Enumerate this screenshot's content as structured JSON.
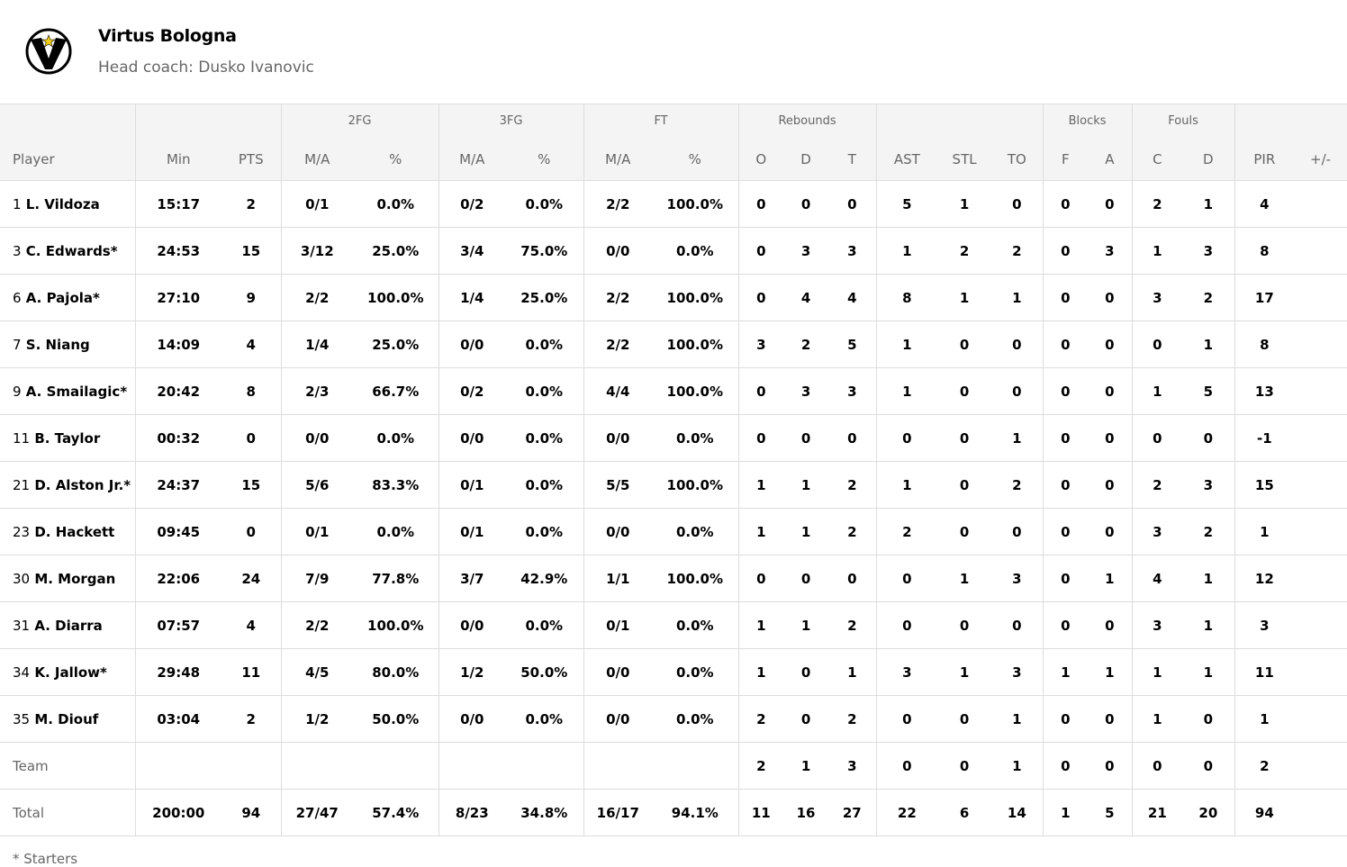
{
  "team": {
    "name": "Virtus Bologna",
    "coach": "Head coach: Dusko Ivanovic",
    "logo": "virtus-bologna-logo"
  },
  "groups": {
    "fg2": "2FG",
    "fg3": "3FG",
    "ft": "FT",
    "reb": "Rebounds",
    "blk": "Blocks",
    "fouls": "Fouls"
  },
  "columns": [
    "Player",
    "Min",
    "PTS",
    "M/A",
    "%",
    "M/A",
    "%",
    "M/A",
    "%",
    "O",
    "D",
    "T",
    "AST",
    "STL",
    "TO",
    "F",
    "A",
    "C",
    "D",
    "PIR",
    "+/-"
  ],
  "rows": [
    {
      "num": "1",
      "name": "L. Vildoza",
      "stats": [
        "15:17",
        "2",
        "0/1",
        "0.0%",
        "0/2",
        "0.0%",
        "2/2",
        "100.0%",
        "0",
        "0",
        "0",
        "5",
        "1",
        "0",
        "0",
        "0",
        "2",
        "1",
        "4",
        ""
      ]
    },
    {
      "num": "3",
      "name": "C. Edwards*",
      "stats": [
        "24:53",
        "15",
        "3/12",
        "25.0%",
        "3/4",
        "75.0%",
        "0/0",
        "0.0%",
        "0",
        "3",
        "3",
        "1",
        "2",
        "2",
        "0",
        "3",
        "1",
        "3",
        "8",
        ""
      ]
    },
    {
      "num": "6",
      "name": "A. Pajola*",
      "stats": [
        "27:10",
        "9",
        "2/2",
        "100.0%",
        "1/4",
        "25.0%",
        "2/2",
        "100.0%",
        "0",
        "4",
        "4",
        "8",
        "1",
        "1",
        "0",
        "0",
        "3",
        "2",
        "17",
        ""
      ]
    },
    {
      "num": "7",
      "name": "S. Niang",
      "stats": [
        "14:09",
        "4",
        "1/4",
        "25.0%",
        "0/0",
        "0.0%",
        "2/2",
        "100.0%",
        "3",
        "2",
        "5",
        "1",
        "0",
        "0",
        "0",
        "0",
        "0",
        "1",
        "8",
        ""
      ]
    },
    {
      "num": "9",
      "name": "A. Smailagic*",
      "stats": [
        "20:42",
        "8",
        "2/3",
        "66.7%",
        "0/2",
        "0.0%",
        "4/4",
        "100.0%",
        "0",
        "3",
        "3",
        "1",
        "0",
        "0",
        "0",
        "0",
        "1",
        "5",
        "13",
        ""
      ]
    },
    {
      "num": "11",
      "name": "B. Taylor",
      "stats": [
        "00:32",
        "0",
        "0/0",
        "0.0%",
        "0/0",
        "0.0%",
        "0/0",
        "0.0%",
        "0",
        "0",
        "0",
        "0",
        "0",
        "1",
        "0",
        "0",
        "0",
        "0",
        "-1",
        ""
      ]
    },
    {
      "num": "21",
      "name": "D. Alston Jr.*",
      "stats": [
        "24:37",
        "15",
        "5/6",
        "83.3%",
        "0/1",
        "0.0%",
        "5/5",
        "100.0%",
        "1",
        "1",
        "2",
        "1",
        "0",
        "2",
        "0",
        "0",
        "2",
        "3",
        "15",
        ""
      ]
    },
    {
      "num": "23",
      "name": "D. Hackett",
      "stats": [
        "09:45",
        "0",
        "0/1",
        "0.0%",
        "0/1",
        "0.0%",
        "0/0",
        "0.0%",
        "1",
        "1",
        "2",
        "2",
        "0",
        "0",
        "0",
        "0",
        "3",
        "2",
        "1",
        ""
      ]
    },
    {
      "num": "30",
      "name": "M. Morgan",
      "stats": [
        "22:06",
        "24",
        "7/9",
        "77.8%",
        "3/7",
        "42.9%",
        "1/1",
        "100.0%",
        "0",
        "0",
        "0",
        "0",
        "1",
        "3",
        "0",
        "1",
        "4",
        "1",
        "12",
        ""
      ]
    },
    {
      "num": "31",
      "name": "A. Diarra",
      "stats": [
        "07:57",
        "4",
        "2/2",
        "100.0%",
        "0/0",
        "0.0%",
        "0/1",
        "0.0%",
        "1",
        "1",
        "2",
        "0",
        "0",
        "0",
        "0",
        "0",
        "3",
        "1",
        "3",
        ""
      ]
    },
    {
      "num": "34",
      "name": "K. Jallow*",
      "stats": [
        "29:48",
        "11",
        "4/5",
        "80.0%",
        "1/2",
        "50.0%",
        "0/0",
        "0.0%",
        "1",
        "0",
        "1",
        "3",
        "1",
        "3",
        "1",
        "1",
        "1",
        "1",
        "11",
        ""
      ]
    },
    {
      "num": "35",
      "name": "M. Diouf",
      "stats": [
        "03:04",
        "2",
        "1/2",
        "50.0%",
        "0/0",
        "0.0%",
        "0/0",
        "0.0%",
        "2",
        "0",
        "2",
        "0",
        "0",
        "1",
        "0",
        "0",
        "1",
        "0",
        "1",
        ""
      ]
    }
  ],
  "team_row": {
    "label": "Team",
    "stats": [
      "",
      "",
      "",
      "",
      "",
      "",
      "",
      "",
      "2",
      "1",
      "3",
      "0",
      "0",
      "1",
      "0",
      "0",
      "0",
      "0",
      "2",
      ""
    ]
  },
  "total_row": {
    "label": "Total",
    "stats": [
      "200:00",
      "94",
      "27/47",
      "57.4%",
      "8/23",
      "34.8%",
      "16/17",
      "94.1%",
      "11",
      "16",
      "27",
      "22",
      "6",
      "14",
      "1",
      "5",
      "21",
      "20",
      "94",
      ""
    ]
  },
  "footnote": "* Starters"
}
